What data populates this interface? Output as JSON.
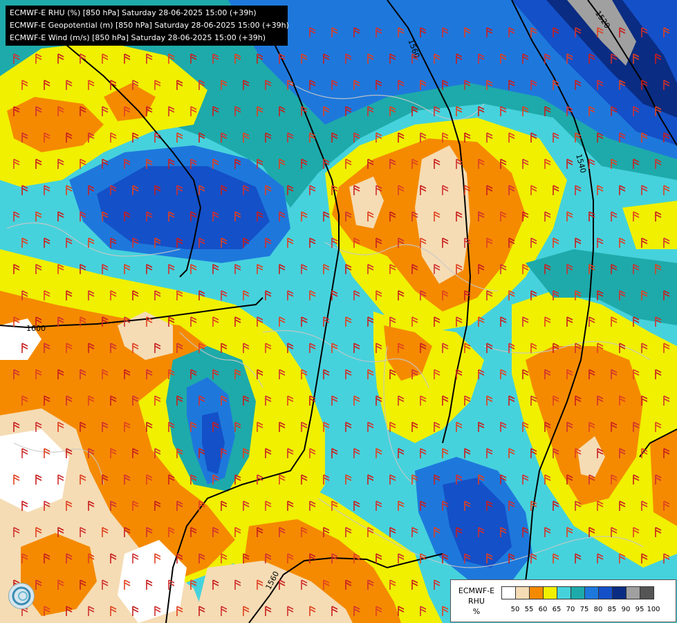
{
  "header": {
    "line1": "ECMWF-E RHU (%) [850 hPa] Saturday 28-06-2025 15:00 (+39h)",
    "line2": "ECMWF-E Geopotential (m) [850 hPa] Saturday 28-06-2025 15:00 (+39h)",
    "line3": "ECMWF-E Wind (m/s) [850 hPa] Saturday 28-06-2025 15:00 (+39h)"
  },
  "contours": {
    "labels": [
      "1600",
      "1560",
      "1540",
      "1520",
      "1560"
    ]
  },
  "legend": {
    "model": "ECMWF-E",
    "field": "RHU",
    "unit": "%",
    "ticks": [
      "50",
      "55",
      "60",
      "65",
      "70",
      "75",
      "80",
      "85",
      "90",
      "95",
      "100"
    ],
    "colors": [
      "#ffffff",
      "#f5dcb4",
      "#f58a00",
      "#f0f000",
      "#46d2dc",
      "#1eaaaa",
      "#1e78dc",
      "#1450c8",
      "#0a2c82",
      "#a0a0a0",
      "#555555"
    ]
  },
  "palette": {
    "white": "#ffffff",
    "peach": "#f5dcb4",
    "orange": "#f58a00",
    "yellow": "#f0f000",
    "cyan": "#46d2dc",
    "teal": "#1eaaaa",
    "blue": "#1e78dc",
    "deep_blue": "#1450c8",
    "navy": "#0a2c82",
    "grey": "#a0a0a0"
  },
  "logo": {
    "icon": "wave-logo-icon"
  }
}
